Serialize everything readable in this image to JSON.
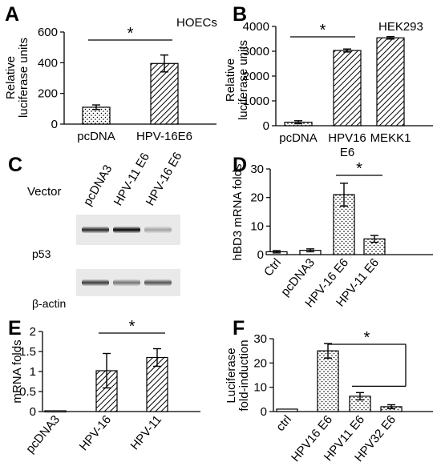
{
  "panels": {
    "A": "A",
    "B": "B",
    "C": "C",
    "D": "D",
    "E": "E",
    "F": "F"
  },
  "chart_data": [
    {
      "id": "A",
      "type": "bar",
      "title": "HOECs",
      "ylabel": "Relative luciferase units",
      "ylim": [
        0,
        600
      ],
      "yticks": [
        0,
        200,
        400,
        600
      ],
      "categories": [
        "pcDNA",
        "HPV-16E6"
      ],
      "values": [
        110,
        395
      ],
      "errors": [
        15,
        55
      ],
      "fills": [
        "dots",
        "hatch"
      ],
      "significance": [
        {
          "from": 0,
          "to": 1,
          "label": "*"
        }
      ]
    },
    {
      "id": "B",
      "type": "bar",
      "title": "HEK293",
      "ylabel": "Relative luciferase units",
      "ylim": [
        0,
        4000
      ],
      "yticks": [
        0,
        1000,
        2000,
        3000,
        4000
      ],
      "categories": [
        "pcDNA",
        "HPV16 E6",
        "MEKK1"
      ],
      "values": [
        140,
        3030,
        3540
      ],
      "errors": [
        60,
        60,
        50
      ],
      "fills": [
        "dots",
        "hatch",
        "hatch"
      ],
      "significance": [
        {
          "from": 0,
          "to": 1,
          "label": "*"
        }
      ]
    },
    {
      "id": "D",
      "type": "bar",
      "title": "",
      "ylabel": "hBD3 mRNA folds",
      "ylim": [
        0,
        30
      ],
      "yticks": [
        0,
        10,
        20,
        30
      ],
      "categories": [
        "Ctrl",
        "pcDNA3",
        "HPV-16 E6",
        "HPV-11 E6"
      ],
      "values": [
        1,
        1.5,
        21,
        5.5
      ],
      "errors": [
        0.4,
        0.5,
        4,
        1.2
      ],
      "fills": [
        "none",
        "none",
        "dots",
        "dots"
      ],
      "significance": [
        {
          "from": 2,
          "to": 3,
          "label": "*"
        }
      ]
    },
    {
      "id": "E",
      "type": "bar",
      "title": "",
      "ylabel": "mRNA folds",
      "ylim": [
        0,
        2
      ],
      "yticks": [
        0,
        0.5,
        1,
        1.5,
        2
      ],
      "categories": [
        "pcDNA3",
        "HPV-16",
        "HPV-11"
      ],
      "values": [
        0.02,
        1.02,
        1.35
      ],
      "errors": [
        0,
        0.43,
        0.22
      ],
      "fills": [
        "none",
        "hatch",
        "hatch"
      ],
      "significance": [
        {
          "from": 1,
          "to": 2,
          "label": "*"
        }
      ]
    },
    {
      "id": "F",
      "type": "bar",
      "title": "",
      "ylabel": "Luciferase fold-induction",
      "ylim": [
        0,
        30
      ],
      "yticks": [
        0,
        10,
        20,
        30
      ],
      "categories": [
        "ctrl",
        "HPV16 E6",
        "HPV11 E6",
        "HPV32 E6"
      ],
      "values": [
        1,
        25,
        6.3,
        2
      ],
      "errors": [
        0,
        3,
        1.5,
        0.8
      ],
      "fills": [
        "none",
        "dots",
        "dots",
        "dots"
      ],
      "significance": [
        {
          "from": 1,
          "to": [
            2,
            3
          ],
          "label": "*"
        }
      ]
    }
  ],
  "blot": {
    "vector_label": "Vector",
    "lanes": [
      "pcDNA3",
      "HPV-11 E6",
      "HPV-16 E6"
    ],
    "bands": [
      {
        "name": "p53",
        "intensity": [
          0.85,
          1.0,
          0.3
        ]
      },
      {
        "name": "β-actin",
        "intensity": [
          0.75,
          0.5,
          0.65
        ]
      }
    ]
  },
  "colors": {
    "ink": "#000000",
    "gel": "#e9e9e9"
  }
}
